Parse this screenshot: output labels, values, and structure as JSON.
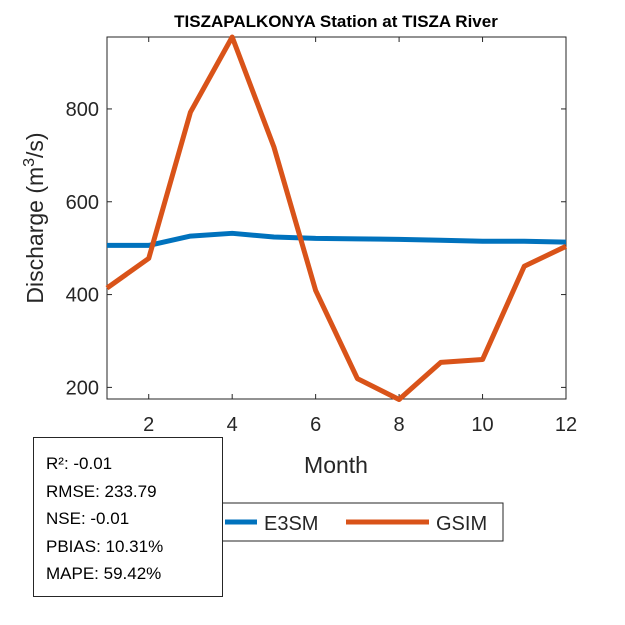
{
  "chart_data": {
    "type": "line",
    "title": "TISZAPALKONYA  Station at  TISZA  River",
    "xlabel": "Month",
    "ylabel": "Discharge (m³/s)",
    "ylabel_base": "Discharge (m",
    "ylabel_sup": "3",
    "ylabel_end": "/s)",
    "x": [
      1,
      2,
      3,
      4,
      5,
      6,
      7,
      8,
      9,
      10,
      11,
      12
    ],
    "xlim": [
      1,
      12
    ],
    "ylim": [
      175,
      955
    ],
    "xticks": [
      2,
      4,
      6,
      8,
      10,
      12
    ],
    "yticks": [
      200,
      400,
      600,
      800
    ],
    "grid": false,
    "legend_placement": "bottom-outside",
    "series": [
      {
        "name": "E3SM",
        "color": "#0072BD",
        "values": [
          506,
          506,
          526,
          532,
          524,
          521,
          520,
          519,
          517,
          515,
          515,
          513
        ]
      },
      {
        "name": "GSIM",
        "color": "#D95319",
        "values": [
          414,
          478,
          793,
          955,
          718,
          409,
          219,
          174,
          254,
          260,
          461,
          504
        ]
      }
    ]
  },
  "stats": {
    "r2": "R²: -0.01",
    "rmse": "RMSE: 233.79",
    "nse": "NSE: -0.01",
    "pbias": "PBIAS: 10.31%",
    "mape": "MAPE: 59.42%"
  }
}
